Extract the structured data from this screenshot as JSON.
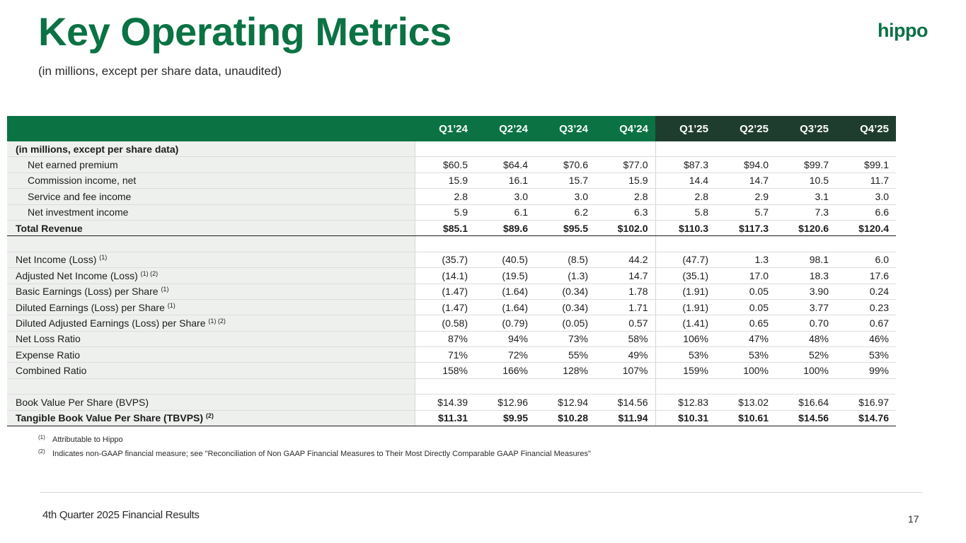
{
  "title": "Key Operating Metrics",
  "subtitle": "(in millions, except per share data, unaudited)",
  "logo": "hippo",
  "table": {
    "columns": [
      "Q1’24",
      "Q2’24",
      "Q3’24",
      "Q4’24",
      "Q1’25",
      "Q2’25",
      "Q3’25",
      "Q4’25"
    ],
    "section_label": "(in millions, except per share data)",
    "rows": [
      {
        "label": "Net earned premium",
        "note": "",
        "values": [
          "$60.5",
          "$64.4",
          "$70.6",
          "$77.0",
          "$87.3",
          "$94.0",
          "$99.7",
          "$99.1"
        ]
      },
      {
        "label": "Commission income, net",
        "note": "",
        "values": [
          "15.9",
          "16.1",
          "15.7",
          "15.9",
          "14.4",
          "14.7",
          "10.5",
          "11.7"
        ]
      },
      {
        "label": "Service and fee income",
        "note": "",
        "values": [
          "2.8",
          "3.0",
          "3.0",
          "2.8",
          "2.8",
          "2.9",
          "3.1",
          "3.0"
        ]
      },
      {
        "label": "Net investment income",
        "note": "",
        "values": [
          "5.9",
          "6.1",
          "6.2",
          "6.3",
          "5.8",
          "5.7",
          "7.3",
          "6.6"
        ]
      },
      {
        "label": "Total Revenue",
        "note": "",
        "values": [
          "$85.1",
          "$89.6",
          "$95.5",
          "$102.0",
          "$110.3",
          "$117.3",
          "$120.6",
          "$120.4"
        ]
      },
      {
        "label": "Net Income (Loss)",
        "note": "(1)",
        "values": [
          "(35.7)",
          "(40.5)",
          "(8.5)",
          "44.2",
          "(47.7)",
          "1.3",
          "98.1",
          "6.0"
        ]
      },
      {
        "label": "Adjusted Net Income (Loss)",
        "note": "(1) (2)",
        "values": [
          "(14.1)",
          "(19.5)",
          "(1.3)",
          "14.7",
          "(35.1)",
          "17.0",
          "18.3",
          "17.6"
        ]
      },
      {
        "label": "Basic Earnings (Loss) per Share",
        "note": "(1)",
        "values": [
          "(1.47)",
          "(1.64)",
          "(0.34)",
          "1.78",
          "(1.91)",
          "0.05",
          "3.90",
          "0.24"
        ]
      },
      {
        "label": "Diluted Earnings (Loss) per Share",
        "note": "(1)",
        "values": [
          "(1.47)",
          "(1.64)",
          "(0.34)",
          "1.71",
          "(1.91)",
          "0.05",
          "3.77",
          "0.23"
        ]
      },
      {
        "label": "Diluted Adjusted Earnings (Loss) per Share",
        "note": "(1) (2)",
        "values": [
          "(0.58)",
          "(0.79)",
          "(0.05)",
          "0.57",
          "(1.41)",
          "0.65",
          "0.70",
          "0.67"
        ]
      },
      {
        "label": "Net Loss Ratio",
        "note": "",
        "values": [
          "87%",
          "94%",
          "73%",
          "58%",
          "106%",
          "47%",
          "48%",
          "46%"
        ]
      },
      {
        "label": "Expense Ratio",
        "note": "",
        "values": [
          "71%",
          "72%",
          "55%",
          "49%",
          "53%",
          "53%",
          "52%",
          "53%"
        ]
      },
      {
        "label": "Combined Ratio",
        "note": "",
        "values": [
          "158%",
          "166%",
          "128%",
          "107%",
          "159%",
          "100%",
          "100%",
          "99%"
        ]
      },
      {
        "label": "Book Value Per Share (BVPS)",
        "note": "",
        "values": [
          "$14.39",
          "$12.96",
          "$12.94",
          "$14.56",
          "$12.83",
          "$13.02",
          "$16.64",
          "$16.97"
        ]
      },
      {
        "label": "Tangible Book Value Per Share (TBVPS)",
        "note": "(2)",
        "values": [
          "$11.31",
          "$9.95",
          "$10.28",
          "$11.94",
          "$10.31",
          "$10.61",
          "$14.56",
          "$14.76"
        ]
      }
    ]
  },
  "footnotes": [
    {
      "mark": "(1)",
      "text": "Attributable to Hippo"
    },
    {
      "mark": "(2)",
      "text": "Indicates non-GAAP financial measure; see \"Reconciliation of Non GAAP Financial Measures to Their Most Directly Comparable GAAP Financial Measures\""
    }
  ],
  "footer": "4th Quarter 2025 Financial Results",
  "page_number": "17",
  "colors": {
    "brand_green": "#0b7244",
    "header_dark": "#1f3d2f",
    "label_bg": "#eef0ee"
  }
}
